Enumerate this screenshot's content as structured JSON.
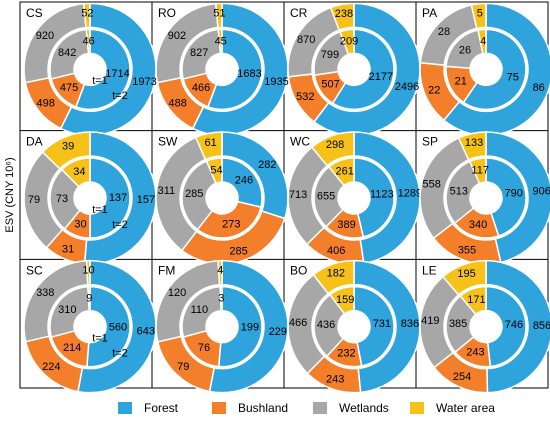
{
  "y_axis_label": "ESV (CNY 10⁶)",
  "period_labels": [
    "t=1",
    "t=2"
  ],
  "legend": [
    {
      "name": "Forest",
      "color": "#2ea3dc"
    },
    {
      "name": "Bushland",
      "color": "#f47f2a"
    },
    {
      "name": "Wetlands",
      "color": "#a7a7a7"
    },
    {
      "name": "Water area",
      "color": "#f6c21a"
    }
  ],
  "chart_data": [
    {
      "type": "pie",
      "title": "CS",
      "series": [
        {
          "name": "t=1",
          "values": [
            1714,
            475,
            842,
            46
          ]
        },
        {
          "name": "t=2",
          "values": [
            1973,
            498,
            920,
            52
          ]
        }
      ],
      "categories": [
        "Forest",
        "Bushland",
        "Wetlands",
        "Water area"
      ]
    },
    {
      "type": "pie",
      "title": "RO",
      "series": [
        {
          "name": "t=1",
          "values": [
            1683,
            466,
            827,
            45
          ]
        },
        {
          "name": "t=2",
          "values": [
            1935,
            488,
            902,
            51
          ]
        }
      ],
      "categories": [
        "Forest",
        "Bushland",
        "Wetlands",
        "Water area"
      ]
    },
    {
      "type": "pie",
      "title": "CR",
      "series": [
        {
          "name": "t=1",
          "values": [
            2177,
            507,
            799,
            209
          ]
        },
        {
          "name": "t=2",
          "values": [
            2496,
            532,
            870,
            238
          ]
        }
      ],
      "categories": [
        "Forest",
        "Bushland",
        "Wetlands",
        "Water area"
      ]
    },
    {
      "type": "pie",
      "title": "PA",
      "series": [
        {
          "name": "t=1",
          "values": [
            75,
            21,
            26,
            4
          ]
        },
        {
          "name": "t=2",
          "values": [
            86,
            22,
            28,
            5
          ]
        }
      ],
      "categories": [
        "Forest",
        "Bushland",
        "Wetlands",
        "Water area"
      ]
    },
    {
      "type": "pie",
      "title": "DA",
      "series": [
        {
          "name": "t=1",
          "values": [
            137,
            30,
            73,
            34
          ]
        },
        {
          "name": "t=2",
          "values": [
            157,
            31,
            79,
            39
          ]
        }
      ],
      "categories": [
        "Forest",
        "Bushland",
        "Wetlands",
        "Water area"
      ]
    },
    {
      "type": "pie",
      "title": "SW",
      "series": [
        {
          "name": "t=1",
          "values": [
            246,
            273,
            285,
            54
          ]
        },
        {
          "name": "t=2",
          "values": [
            282,
            285,
            311,
            61
          ]
        }
      ],
      "categories": [
        "Forest",
        "Bushland",
        "Wetlands",
        "Water area"
      ]
    },
    {
      "type": "pie",
      "title": "WC",
      "series": [
        {
          "name": "t=1",
          "values": [
            1123,
            389,
            655,
            261
          ]
        },
        {
          "name": "t=2",
          "values": [
            1289,
            406,
            713,
            298
          ]
        }
      ],
      "categories": [
        "Forest",
        "Bushland",
        "Wetlands",
        "Water area"
      ]
    },
    {
      "type": "pie",
      "title": "SP",
      "series": [
        {
          "name": "t=1",
          "values": [
            790,
            340,
            513,
            117
          ]
        },
        {
          "name": "t=2",
          "values": [
            906,
            355,
            558,
            133
          ]
        }
      ],
      "categories": [
        "Forest",
        "Bushland",
        "Wetlands",
        "Water area"
      ]
    },
    {
      "type": "pie",
      "title": "SC",
      "series": [
        {
          "name": "t=1",
          "values": [
            560,
            214,
            310,
            9
          ]
        },
        {
          "name": "t=2",
          "values": [
            643,
            224,
            338,
            10
          ]
        }
      ],
      "categories": [
        "Forest",
        "Bushland",
        "Wetlands",
        "Water area"
      ]
    },
    {
      "type": "pie",
      "title": "FM",
      "series": [
        {
          "name": "t=1",
          "values": [
            199,
            76,
            110,
            3
          ]
        },
        {
          "name": "t=2",
          "values": [
            229,
            79,
            120,
            4
          ]
        }
      ],
      "categories": [
        "Forest",
        "Bushland",
        "Wetlands",
        "Water area"
      ]
    },
    {
      "type": "pie",
      "title": "BO",
      "series": [
        {
          "name": "t=1",
          "values": [
            731,
            232,
            436,
            159
          ]
        },
        {
          "name": "t=2",
          "values": [
            836,
            243,
            466,
            182
          ]
        }
      ],
      "categories": [
        "Forest",
        "Bushland",
        "Wetlands",
        "Water area"
      ]
    },
    {
      "type": "pie",
      "title": "LE",
      "series": [
        {
          "name": "t=1",
          "values": [
            746,
            243,
            385,
            171
          ]
        },
        {
          "name": "t=2",
          "values": [
            856,
            254,
            419,
            195
          ]
        }
      ],
      "categories": [
        "Forest",
        "Bushland",
        "Wetlands",
        "Water area"
      ]
    }
  ]
}
